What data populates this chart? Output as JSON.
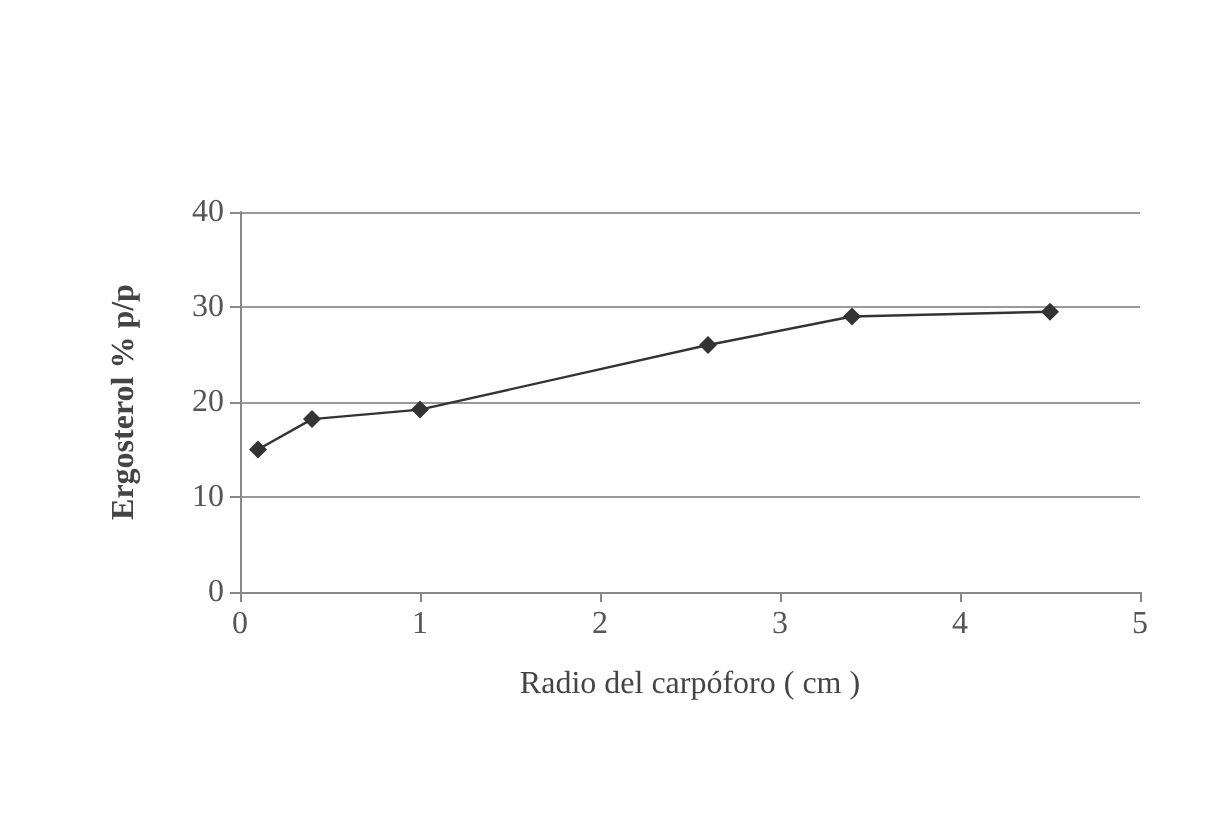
{
  "chart_data": {
    "type": "line",
    "xlabel": "Radio del carpóforo ( cm )",
    "ylabel": "Ergosterol % p/p",
    "x": [
      0.1,
      0.4,
      1,
      2.6,
      3.4,
      4.5
    ],
    "series": [
      {
        "color": "#333333",
        "values": [
          15,
          18.2,
          19.2,
          26,
          29,
          29.5
        ]
      }
    ],
    "xlim": [
      0,
      5
    ],
    "xticks": [
      0,
      1,
      2,
      3,
      4,
      5
    ],
    "ylim": [
      0,
      40
    ],
    "yticks": [
      0,
      10,
      20,
      30,
      40
    ],
    "grid": "y",
    "marker": "diamond",
    "line_style": "solid"
  }
}
